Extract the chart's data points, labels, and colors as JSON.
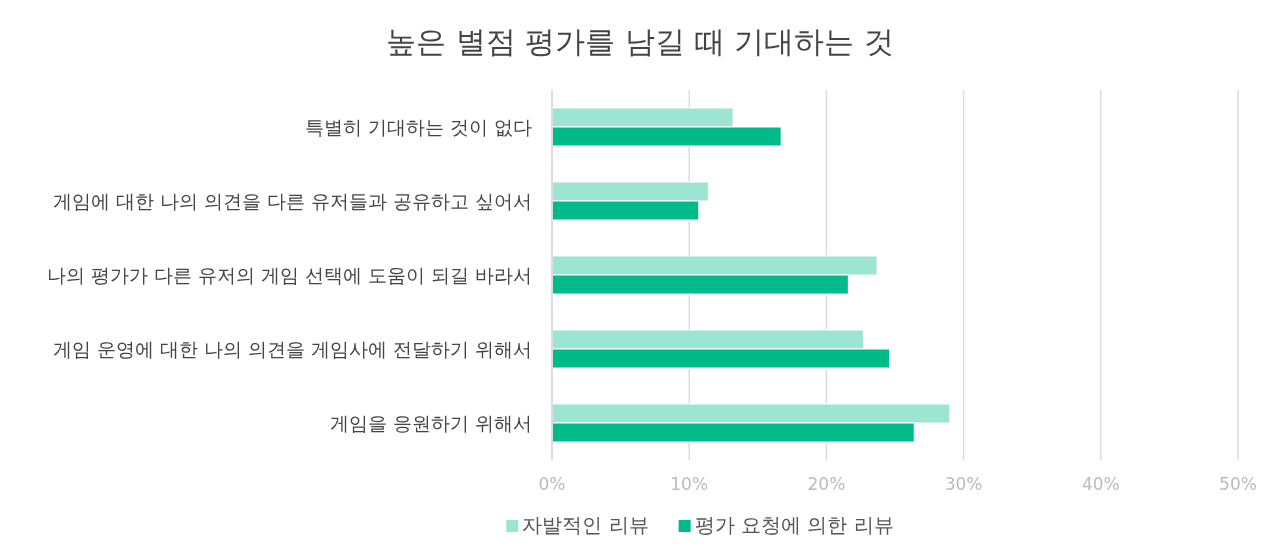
{
  "chart_data": {
    "type": "bar",
    "orientation": "horizontal",
    "title": "높은 별점 평가를 남길 때 기대하는 것",
    "categories": [
      "특별히 기대하는 것이 없다",
      "게임에 대한 나의 의견을 다른 유저들과 공유하고 싶어서",
      "나의 평가가 다른 유저의 게임 선택에 도움이 되길 바라서",
      "게임 운영에 대한 나의 의견을 게임사에 전달하기 위해서",
      "게임을 응원하기 위해서"
    ],
    "series": [
      {
        "name": "자발적인 리뷰",
        "color": "#9ce5d2",
        "values": [
          13.2,
          11.4,
          23.7,
          22.7,
          29.0
        ]
      },
      {
        "name": "평가 요청에 의한 리뷰",
        "color": "#00ba8a",
        "values": [
          16.7,
          10.7,
          21.6,
          24.6,
          26.4
        ]
      }
    ],
    "xlim": [
      0,
      50
    ],
    "xticks": [
      {
        "value": 0,
        "label": "0%"
      },
      {
        "value": 10,
        "label": "10%"
      },
      {
        "value": 20,
        "label": "20%"
      },
      {
        "value": 30,
        "label": "30%"
      },
      {
        "value": 40,
        "label": "40%"
      },
      {
        "value": 50,
        "label": "50%"
      }
    ],
    "grid": "x",
    "legend": "bottom"
  }
}
